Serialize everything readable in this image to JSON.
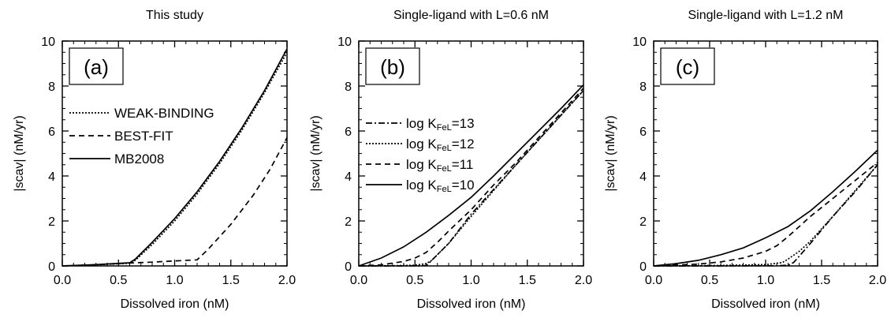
{
  "chart_data": [
    {
      "type": "line",
      "title": "This study",
      "panel_label": "(a)",
      "xlabel": "Dissolved iron (nM)",
      "ylabel": "|scav| (nM/yr)",
      "xlim": [
        0,
        2
      ],
      "ylim": [
        0,
        10
      ],
      "xticks": [
        "0.0",
        "0.5",
        "1.0",
        "1.5",
        "2.0"
      ],
      "yticks": [
        "0",
        "2",
        "4",
        "6",
        "8",
        "10"
      ],
      "grid": false,
      "legend_position": "middle-left",
      "series": [
        {
          "name": "WEAK-BINDING",
          "dash": "dotted",
          "x": [
            0,
            0.3,
            0.6,
            0.65,
            0.8,
            1.0,
            1.2,
            1.4,
            1.6,
            1.8,
            2.0
          ],
          "y": [
            0,
            0.05,
            0.12,
            0.25,
            0.95,
            2.0,
            3.2,
            4.55,
            6.05,
            7.7,
            9.5
          ]
        },
        {
          "name": "BEST-FIT",
          "dash": "dashed",
          "x": [
            0,
            0.3,
            0.6,
            0.8,
            1.0,
            1.2,
            1.3,
            1.5,
            1.7,
            1.85,
            2.0
          ],
          "y": [
            0,
            0.05,
            0.13,
            0.17,
            0.22,
            0.27,
            0.75,
            1.85,
            3.15,
            4.3,
            5.7
          ]
        },
        {
          "name": "MB2008",
          "dash": "solid",
          "x": [
            0,
            0.3,
            0.6,
            0.65,
            0.8,
            1.0,
            1.2,
            1.4,
            1.6,
            1.8,
            2.0
          ],
          "y": [
            0,
            0.06,
            0.14,
            0.3,
            1.05,
            2.1,
            3.3,
            4.65,
            6.15,
            7.8,
            9.65
          ]
        }
      ]
    },
    {
      "type": "line",
      "title": "Single-ligand with L=0.6 nM",
      "panel_label": "(b)",
      "xlabel": "Dissolved iron (nM)",
      "ylabel": "|scav| (nM/yr)",
      "xlim": [
        0,
        2
      ],
      "ylim": [
        0,
        10
      ],
      "xticks": [
        "0.0",
        "0.5",
        "1.0",
        "1.5",
        "2.0"
      ],
      "yticks": [
        "0",
        "2",
        "4",
        "6",
        "8",
        "10"
      ],
      "grid": false,
      "legend_position": "middle-left",
      "series": [
        {
          "name": "log K_FeL=13",
          "dash": "dashdot",
          "x": [
            0,
            0.3,
            0.55,
            0.6,
            0.62,
            0.8,
            1.0,
            1.2,
            1.4,
            1.6,
            1.8,
            2.0
          ],
          "y": [
            0,
            0.0,
            0.005,
            0.02,
            0.1,
            1.0,
            2.3,
            3.4,
            4.5,
            5.6,
            6.7,
            7.8
          ]
        },
        {
          "name": "log K_FeL=12",
          "dash": "dotted",
          "x": [
            0,
            0.3,
            0.5,
            0.6,
            0.65,
            0.8,
            1.0,
            1.2,
            1.4,
            1.6,
            1.8,
            2.0
          ],
          "y": [
            0,
            0.01,
            0.03,
            0.1,
            0.25,
            1.0,
            2.2,
            3.35,
            4.5,
            5.6,
            6.7,
            7.8
          ]
        },
        {
          "name": "log K_FeL=11",
          "dash": "dashed",
          "x": [
            0,
            0.2,
            0.4,
            0.5,
            0.6,
            0.7,
            0.8,
            1.0,
            1.2,
            1.4,
            1.6,
            1.8,
            2.0
          ],
          "y": [
            0,
            0.05,
            0.2,
            0.35,
            0.6,
            1.05,
            1.55,
            2.5,
            3.6,
            4.6,
            5.7,
            6.8,
            7.9
          ]
        },
        {
          "name": "log K_FeL=10",
          "dash": "solid",
          "x": [
            0,
            0.2,
            0.4,
            0.6,
            0.8,
            1.0,
            1.2,
            1.4,
            1.6,
            1.8,
            2.0
          ],
          "y": [
            0,
            0.35,
            0.85,
            1.5,
            2.25,
            3.05,
            4.0,
            5.0,
            6.0,
            7.0,
            8.05
          ]
        }
      ]
    },
    {
      "type": "line",
      "title": "Single-ligand with L=1.2 nM",
      "panel_label": "(c)",
      "xlabel": "Dissolved iron (nM)",
      "ylabel": "|scav| (nM/yr)",
      "xlim": [
        0,
        2
      ],
      "ylim": [
        0,
        10
      ],
      "xticks": [
        "0.0",
        "0.5",
        "1.0",
        "1.5",
        "2.0"
      ],
      "yticks": [
        "0",
        "2",
        "4",
        "6",
        "8",
        "10"
      ],
      "grid": false,
      "series": [
        {
          "name": "log K_FeL=13",
          "dash": "dashdot",
          "x": [
            0,
            0.6,
            1.1,
            1.2,
            1.25,
            1.4,
            1.6,
            1.8,
            2.0
          ],
          "y": [
            0,
            0.0,
            0.01,
            0.03,
            0.15,
            1.0,
            2.2,
            3.3,
            4.5
          ]
        },
        {
          "name": "log K_FeL=12",
          "dash": "dotted",
          "x": [
            0,
            0.6,
            1.0,
            1.15,
            1.2,
            1.3,
            1.4,
            1.6,
            1.8,
            2.0
          ],
          "y": [
            0,
            0.02,
            0.06,
            0.15,
            0.3,
            0.65,
            1.1,
            2.2,
            3.35,
            4.5
          ]
        },
        {
          "name": "log K_FeL=11",
          "dash": "dashed",
          "x": [
            0,
            0.4,
            0.6,
            0.8,
            1.0,
            1.1,
            1.2,
            1.3,
            1.4,
            1.6,
            1.8,
            2.0
          ],
          "y": [
            0,
            0.08,
            0.18,
            0.35,
            0.65,
            0.9,
            1.3,
            1.75,
            2.2,
            3.0,
            3.8,
            4.6
          ]
        },
        {
          "name": "log K_FeL=10",
          "dash": "solid",
          "x": [
            0,
            0.2,
            0.4,
            0.6,
            0.8,
            1.0,
            1.2,
            1.4,
            1.6,
            1.8,
            2.0
          ],
          "y": [
            0,
            0.1,
            0.25,
            0.5,
            0.8,
            1.25,
            1.75,
            2.45,
            3.3,
            4.2,
            5.15
          ]
        }
      ]
    }
  ]
}
